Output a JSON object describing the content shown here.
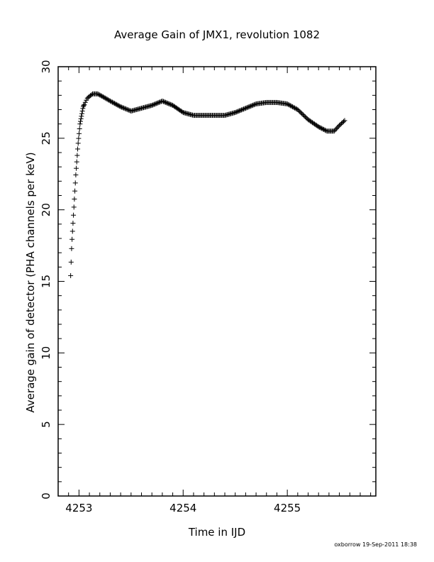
{
  "chart_data": {
    "type": "scatter",
    "title": "Average Gain of JMX1, revolution 1082",
    "xlabel": "Time in IJD",
    "ylabel": "Average gain of detector (PHA channels per keV)",
    "xlim": [
      4252.8,
      4255.85
    ],
    "ylim": [
      0,
      30
    ],
    "xticks": [
      4253,
      4254,
      4255
    ],
    "yticks": [
      0,
      5,
      10,
      15,
      20,
      25,
      30
    ],
    "marker": "plus",
    "series": [
      {
        "x": [
          4252.92,
          4252.93,
          4252.95,
          4252.97,
          4252.99,
          4253.01,
          4253.04,
          4253.08,
          4253.13,
          4253.18,
          4253.23,
          4253.3,
          4253.4,
          4253.5,
          4253.6,
          4253.7,
          4253.8,
          4253.9,
          4254.0,
          4254.1,
          4254.2,
          4254.3,
          4254.4,
          4254.5,
          4254.6,
          4254.7,
          4254.8,
          4254.9,
          4255.0,
          4255.1,
          4255.2,
          4255.3,
          4255.38,
          4255.45,
          4255.5,
          4255.56
        ],
        "y": [
          15.4,
          17.5,
          20.0,
          22.5,
          24.5,
          26.0,
          27.2,
          27.8,
          28.1,
          28.1,
          27.9,
          27.6,
          27.2,
          26.9,
          27.1,
          27.3,
          27.6,
          27.3,
          26.8,
          26.6,
          26.6,
          26.6,
          26.6,
          26.8,
          27.1,
          27.4,
          27.5,
          27.5,
          27.4,
          27.0,
          26.3,
          25.8,
          25.5,
          25.5,
          25.9,
          26.3
        ]
      }
    ]
  },
  "footer": "oxborrow 19-Sep-2011 18:38"
}
